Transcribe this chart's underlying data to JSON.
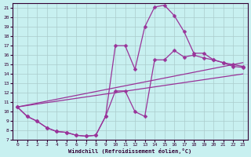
{
  "xlabel": "Windchill (Refroidissement éolien,°C)",
  "background_color": "#c8f0f0",
  "line_color": "#993399",
  "grid_color": "#aacccc",
  "xlim": [
    -0.5,
    23.5
  ],
  "ylim": [
    7,
    21.5
  ],
  "xticks": [
    0,
    1,
    2,
    3,
    4,
    5,
    6,
    7,
    8,
    9,
    10,
    11,
    12,
    13,
    14,
    15,
    16,
    17,
    18,
    19,
    20,
    21,
    22,
    23
  ],
  "yticks": [
    7,
    8,
    9,
    10,
    11,
    12,
    13,
    14,
    15,
    16,
    17,
    18,
    19,
    20,
    21
  ],
  "line1_x": [
    0,
    1,
    2,
    3,
    4,
    5,
    6,
    7,
    8,
    9,
    10,
    11,
    12,
    13,
    14,
    15,
    16,
    17,
    18,
    19,
    20,
    21,
    22,
    23
  ],
  "line1_y": [
    10.5,
    9.5,
    9.0,
    8.3,
    7.9,
    7.8,
    7.5,
    7.4,
    7.5,
    9.5,
    17.0,
    17.0,
    14.5,
    19.0,
    21.1,
    21.3,
    20.2,
    18.5,
    16.2,
    16.2,
    15.5,
    15.2,
    15.0,
    14.8
  ],
  "line2_x": [
    0,
    1,
    2,
    3,
    4,
    5,
    6,
    7,
    8,
    9,
    10,
    11,
    12,
    13,
    14,
    15,
    16,
    17,
    18,
    19,
    20,
    21,
    22,
    23
  ],
  "line2_y": [
    10.5,
    9.5,
    9.0,
    8.3,
    7.9,
    7.8,
    7.5,
    7.4,
    7.5,
    9.5,
    12.2,
    12.2,
    10.0,
    9.5,
    15.5,
    15.5,
    16.5,
    15.8,
    16.0,
    15.7,
    15.5,
    15.2,
    14.8,
    14.7
  ],
  "line3_x": [
    0,
    23
  ],
  "line3_y": [
    10.5,
    15.2
  ],
  "line4_x": [
    0,
    23
  ],
  "line4_y": [
    10.5,
    14.0
  ],
  "marker": "D",
  "markersize": 2.5,
  "linewidth": 0.9
}
